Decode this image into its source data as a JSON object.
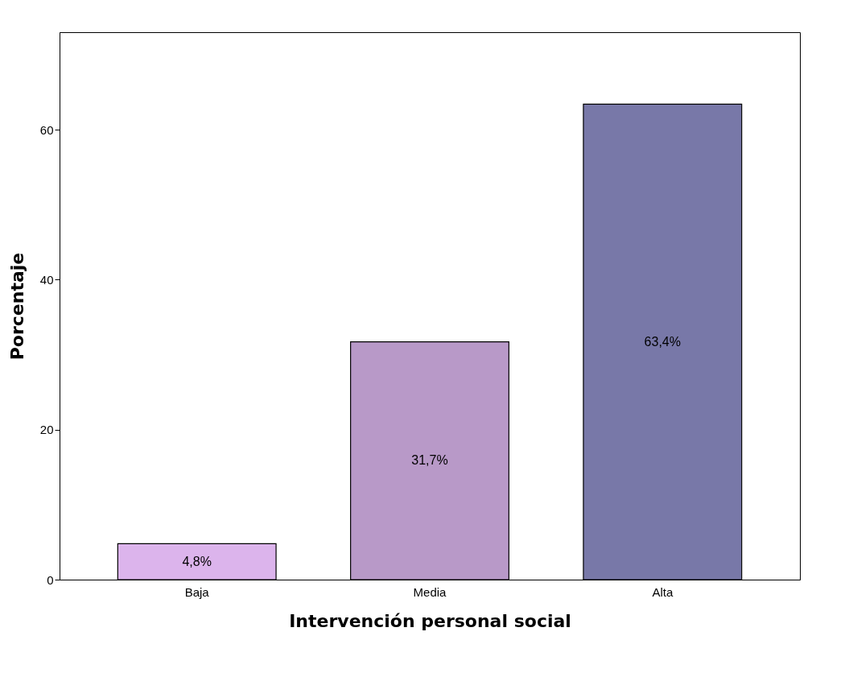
{
  "chart_data": {
    "type": "bar",
    "xlabel": "Intervención personal social",
    "ylabel": "Porcentaje",
    "categories": [
      "Baja",
      "Media",
      "Alta"
    ],
    "values": [
      4.8,
      31.7,
      63.4
    ],
    "colors": [
      "#dcb4ec",
      "#b899c8",
      "#7878a8"
    ],
    "value_labels": [
      "4,8%",
      "31,7%",
      "63,4%"
    ],
    "ylim": [
      0,
      73
    ],
    "yticks": [
      0,
      20,
      40,
      60
    ],
    "grid": false,
    "legend": false
  }
}
